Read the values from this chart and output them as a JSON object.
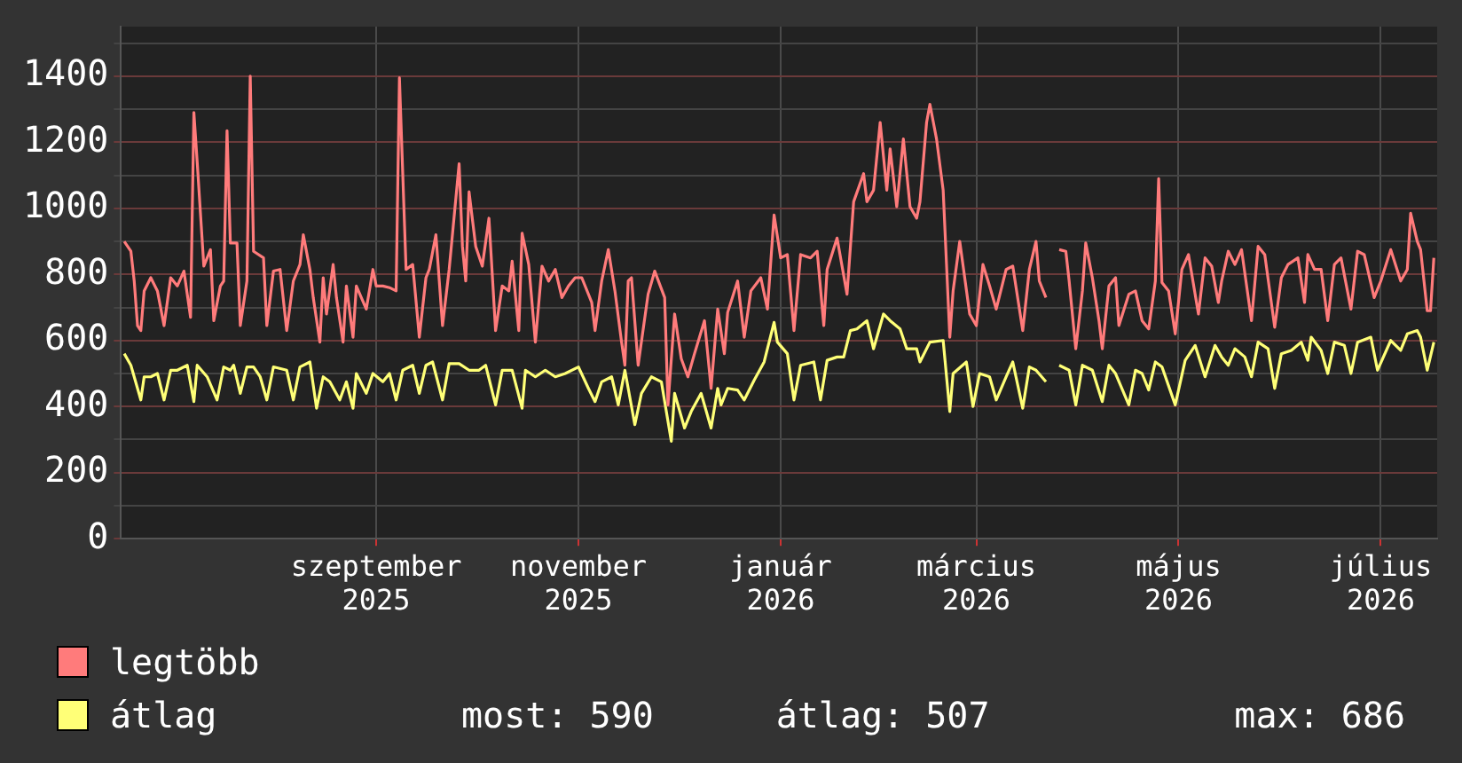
{
  "chart_data": {
    "type": "line",
    "xlim": [
      "2025-06-16",
      "2026-07-18"
    ],
    "xticks": [
      {
        "value": "2025-09-01",
        "label": "szeptember 2025"
      },
      {
        "value": "2025-11-01",
        "label": "november 2025"
      },
      {
        "value": "2026-01-01",
        "label": "január 2026"
      },
      {
        "value": "2026-03-01",
        "label": "március 2026"
      },
      {
        "value": "2026-05-01",
        "label": "május 2026"
      },
      {
        "value": "2026-07-01",
        "label": "július 2026"
      }
    ],
    "ylim": [
      0,
      1550
    ],
    "yticks": [
      0,
      {
        "value": 100,
        "label": null
      },
      200,
      {
        "value": 300,
        "label": null
      },
      400,
      {
        "value": 500,
        "label": null
      },
      600,
      {
        "value": 700,
        "label": null
      },
      800,
      {
        "value": 900,
        "label": null
      },
      1000,
      {
        "value": 1100,
        "label": null
      },
      1200,
      {
        "value": 1300,
        "label": null
      },
      1400,
      {
        "value": 1500,
        "label": null
      }
    ],
    "grid": true,
    "legend": "bottom",
    "annotations": [
      "most: 590",
      "átlag: 507",
      "max: 686"
    ],
    "series": [
      {
        "name": "legtöbb",
        "color": "#ff7b7b",
        "x": [
          "2025-06-17",
          "2025-06-19",
          "2025-06-20",
          "2025-06-21",
          "2025-06-22",
          "2025-06-23",
          "2025-06-25",
          "2025-06-27",
          "2025-06-29",
          "2025-07-01",
          "2025-07-03",
          "2025-07-05",
          "2025-07-07",
          "2025-07-08",
          "2025-07-09",
          "2025-07-11",
          "2025-07-13",
          "2025-07-14",
          "2025-07-16",
          "2025-07-17",
          "2025-07-18",
          "2025-07-19",
          "2025-07-21",
          "2025-07-22",
          "2025-07-24",
          "2025-07-25",
          "2025-07-26",
          "2025-07-29",
          "2025-07-30",
          "2025-08-01",
          "2025-08-03",
          "2025-08-05",
          "2025-08-07",
          "2025-08-09",
          "2025-08-10",
          "2025-08-12",
          "2025-08-13",
          "2025-08-15",
          "2025-08-16",
          "2025-08-17",
          "2025-08-19",
          "2025-08-20",
          "2025-08-22",
          "2025-08-23",
          "2025-08-25",
          "2025-08-26",
          "2025-08-29",
          "2025-08-31",
          "2025-09-01",
          "2025-09-03",
          "2025-09-05",
          "2025-09-07",
          "2025-09-08",
          "2025-09-10",
          "2025-09-12",
          "2025-09-14",
          "2025-09-16",
          "2025-09-17",
          "2025-09-19",
          "2025-09-21",
          "2025-09-23",
          "2025-09-26",
          "2025-09-27",
          "2025-09-28",
          "2025-09-29",
          "2025-10-01",
          "2025-10-03",
          "2025-10-05",
          "2025-10-07",
          "2025-10-09",
          "2025-10-11",
          "2025-10-12",
          "2025-10-14",
          "2025-10-15",
          "2025-10-17",
          "2025-10-19",
          "2025-10-21",
          "2025-10-23",
          "2025-10-25",
          "2025-10-27",
          "2025-10-29",
          "2025-10-31",
          "2025-11-02",
          "2025-11-05",
          "2025-11-06",
          "2025-11-08",
          "2025-11-10",
          "2025-11-12",
          "2025-11-14",
          "2025-11-15",
          "2025-11-16",
          "2025-11-17",
          "2025-11-19",
          "2025-11-22",
          "2025-11-24",
          "2025-11-27",
          "2025-11-28",
          "2025-11-30",
          "2025-12-02",
          "2025-12-04",
          "2025-12-06",
          "2025-12-09",
          "2025-12-11",
          "2025-12-13",
          "2025-12-15",
          "2025-12-16",
          "2025-12-19",
          "2025-12-21",
          "2025-12-23",
          "2025-12-26",
          "2025-12-28",
          "2025-12-30",
          "2026-01-01",
          "2026-01-03",
          "2026-01-05",
          "2026-01-07",
          "2026-01-10",
          "2026-01-12",
          "2026-01-14",
          "2026-01-15",
          "2026-01-18",
          "2026-01-21",
          "2026-01-23",
          "2026-01-26",
          "2026-01-27",
          "2026-01-29",
          "2026-01-31",
          "2026-02-02",
          "2026-02-03",
          "2026-02-05",
          "2026-02-07",
          "2026-02-09",
          "2026-02-11",
          "2026-02-12",
          "2026-02-14",
          "2026-02-15",
          "2026-02-17",
          "2026-02-19",
          "2026-02-21",
          "2026-02-22",
          "2026-02-24",
          "2026-02-27",
          "2026-03-01",
          "2026-03-03",
          "2026-03-05",
          "2026-03-07",
          "2026-03-10",
          "2026-03-12",
          "2026-03-15",
          "2026-03-17",
          "2026-03-19",
          "2026-03-20",
          "2026-03-22",
          "2026-03-23",
          "2026-03-26",
          "2026-03-28",
          "2026-03-29",
          "2026-03-31",
          "2026-04-02",
          "2026-04-03",
          "2026-04-05",
          "2026-04-07",
          "2026-04-08",
          "2026-04-10",
          "2026-04-12",
          "2026-04-13",
          "2026-04-16",
          "2026-04-18",
          "2026-04-20",
          "2026-04-22",
          "2026-04-24",
          "2026-04-25",
          "2026-04-26",
          "2026-04-28",
          "2026-04-30",
          "2026-05-02",
          "2026-05-04",
          "2026-05-07",
          "2026-05-09",
          "2026-05-11",
          "2026-05-13",
          "2026-05-14",
          "2026-05-16",
          "2026-05-18",
          "2026-05-20",
          "2026-05-23",
          "2026-05-25",
          "2026-05-27",
          "2026-05-30",
          "2026-06-01",
          "2026-06-03",
          "2026-06-06",
          "2026-06-08",
          "2026-06-09",
          "2026-06-11",
          "2026-06-13",
          "2026-06-15",
          "2026-06-17",
          "2026-06-19",
          "2026-06-22",
          "2026-06-24",
          "2026-06-26",
          "2026-06-29",
          "2026-07-01",
          "2026-07-04",
          "2026-07-07",
          "2026-07-09",
          "2026-07-10",
          "2026-07-12",
          "2026-07-13",
          "2026-07-15",
          "2026-07-16",
          "2026-07-17"
        ],
        "values": [
          900,
          870,
          780,
          645,
          630,
          750,
          790,
          750,
          645,
          790,
          765,
          810,
          670,
          1290,
          1140,
          825,
          875,
          660,
          765,
          780,
          1235,
          895,
          895,
          645,
          780,
          1400,
          870,
          850,
          645,
          810,
          815,
          630,
          780,
          830,
          920,
          815,
          730,
          595,
          790,
          680,
          830,
          730,
          595,
          765,
          610,
          765,
          695,
          815,
          765,
          765,
          760,
          750,
          1395,
          815,
          830,
          610,
          790,
          815,
          920,
          645,
          815,
          1135,
          885,
          780,
          1050,
          885,
          825,
          970,
          630,
          765,
          750,
          840,
          630,
          925,
          830,
          595,
          825,
          780,
          815,
          730,
          765,
          790,
          790,
          715,
          630,
          780,
          875,
          750,
          595,
          525,
          780,
          790,
          525,
          740,
          810,
          730,
          405,
          680,
          545,
          490,
          560,
          660,
          455,
          695,
          560,
          685,
          780,
          610,
          750,
          790,
          695,
          980,
          850,
          860,
          630,
          860,
          850,
          870,
          645,
          815,
          910,
          740,
          1020,
          1105,
          1020,
          1055,
          1260,
          1055,
          1180,
          1005,
          1210,
          1005,
          970,
          1020,
          1260,
          1315,
          1210,
          1055,
          610,
          750,
          900,
          680,
          645,
          830,
          765,
          695,
          815,
          825,
          630,
          815,
          900,
          780,
          730,
          null,
          875,
          870,
          780,
          575,
          750,
          895,
          790,
          660,
          575,
          765,
          790,
          645,
          740,
          750,
          660,
          635,
          780,
          1090,
          775,
          750,
          620,
          815,
          860,
          680,
          850,
          825,
          715,
          780,
          870,
          830,
          875,
          660,
          885,
          860,
          640,
          790,
          830,
          850,
          715,
          860,
          815,
          815,
          660,
          830,
          850,
          695,
          870,
          860,
          730,
          780,
          875,
          780,
          815,
          985,
          900,
          875,
          690,
          690,
          850
        ]
      },
      {
        "name": "átlag",
        "color": "#ffff77",
        "x": [
          "2025-06-17",
          "2025-06-19",
          "2025-06-22",
          "2025-06-23",
          "2025-06-25",
          "2025-06-27",
          "2025-06-29",
          "2025-07-01",
          "2025-07-03",
          "2025-07-06",
          "2025-07-08",
          "2025-07-09",
          "2025-07-12",
          "2025-07-15",
          "2025-07-17",
          "2025-07-19",
          "2025-07-20",
          "2025-07-22",
          "2025-07-24",
          "2025-07-26",
          "2025-07-28",
          "2025-07-30",
          "2025-08-01",
          "2025-08-05",
          "2025-08-07",
          "2025-08-09",
          "2025-08-12",
          "2025-08-14",
          "2025-08-16",
          "2025-08-18",
          "2025-08-21",
          "2025-08-23",
          "2025-08-25",
          "2025-08-26",
          "2025-08-29",
          "2025-08-31",
          "2025-09-03",
          "2025-09-05",
          "2025-09-07",
          "2025-09-09",
          "2025-09-12",
          "2025-09-14",
          "2025-09-16",
          "2025-09-18",
          "2025-09-21",
          "2025-09-23",
          "2025-09-26",
          "2025-09-29",
          "2025-10-02",
          "2025-10-04",
          "2025-10-07",
          "2025-10-09",
          "2025-10-12",
          "2025-10-15",
          "2025-10-16",
          "2025-10-19",
          "2025-10-22",
          "2025-10-25",
          "2025-10-28",
          "2025-11-01",
          "2025-11-04",
          "2025-11-06",
          "2025-11-08",
          "2025-11-11",
          "2025-11-13",
          "2025-11-15",
          "2025-11-18",
          "2025-11-20",
          "2025-11-23",
          "2025-11-26",
          "2025-11-29",
          "2025-11-30",
          "2025-12-03",
          "2025-12-05",
          "2025-12-08",
          "2025-12-11",
          "2025-12-13",
          "2025-12-14",
          "2025-12-16",
          "2025-12-19",
          "2025-12-21",
          "2025-12-24",
          "2025-12-27",
          "2025-12-30",
          "2025-12-31",
          "2026-01-03",
          "2026-01-05",
          "2026-01-07",
          "2026-01-11",
          "2026-01-13",
          "2026-01-15",
          "2026-01-18",
          "2026-01-20",
          "2026-01-22",
          "2026-01-24",
          "2026-01-27",
          "2026-01-29",
          "2026-02-01",
          "2026-02-03",
          "2026-02-06",
          "2026-02-08",
          "2026-02-11",
          "2026-02-12",
          "2026-02-15",
          "2026-02-19",
          "2026-02-21",
          "2026-02-22",
          "2026-02-26",
          "2026-02-28",
          "2026-03-02",
          "2026-03-05",
          "2026-03-07",
          "2026-03-10",
          "2026-03-12",
          "2026-03-15",
          "2026-03-17",
          "2026-03-19",
          "2026-03-22",
          "2026-03-23",
          "2026-03-26",
          "2026-03-29",
          "2026-03-31",
          "2026-04-02",
          "2026-04-05",
          "2026-04-08",
          "2026-04-10",
          "2026-04-12",
          "2026-04-16",
          "2026-04-18",
          "2026-04-20",
          "2026-04-22",
          "2026-04-24",
          "2026-04-26",
          "2026-04-30",
          "2026-05-03",
          "2026-05-06",
          "2026-05-09",
          "2026-05-12",
          "2026-05-14",
          "2026-05-16",
          "2026-05-18",
          "2026-05-21",
          "2026-05-23",
          "2026-05-25",
          "2026-05-28",
          "2026-05-30",
          "2026-06-01",
          "2026-06-04",
          "2026-06-07",
          "2026-06-09",
          "2026-06-10",
          "2026-06-13",
          "2026-06-15",
          "2026-06-17",
          "2026-06-20",
          "2026-06-22",
          "2026-06-24",
          "2026-06-28",
          "2026-06-30",
          "2026-07-04",
          "2026-07-07",
          "2026-07-09",
          "2026-07-12",
          "2026-07-13",
          "2026-07-15",
          "2026-07-17"
        ],
        "values": [
          560,
          525,
          420,
          490,
          490,
          500,
          420,
          510,
          510,
          525,
          415,
          525,
          490,
          420,
          520,
          510,
          525,
          440,
          520,
          520,
          490,
          420,
          520,
          510,
          420,
          520,
          535,
          395,
          490,
          475,
          420,
          475,
          395,
          500,
          440,
          500,
          475,
          500,
          420,
          510,
          525,
          440,
          525,
          535,
          420,
          530,
          530,
          510,
          510,
          525,
          405,
          510,
          510,
          395,
          510,
          490,
          510,
          490,
          500,
          520,
          455,
          415,
          475,
          490,
          405,
          510,
          345,
          440,
          490,
          475,
          295,
          440,
          335,
          385,
          440,
          335,
          455,
          405,
          455,
          450,
          420,
          480,
          535,
          655,
          595,
          560,
          420,
          525,
          535,
          420,
          540,
          550,
          550,
          630,
          635,
          660,
          575,
          680,
          660,
          635,
          575,
          575,
          535,
          595,
          600,
          385,
          500,
          535,
          400,
          500,
          490,
          420,
          490,
          535,
          395,
          520,
          510,
          475,
          null,
          525,
          510,
          405,
          525,
          510,
          415,
          525,
          500,
          405,
          510,
          500,
          450,
          535,
          520,
          405,
          540,
          585,
          490,
          585,
          550,
          525,
          575,
          550,
          490,
          595,
          575,
          455,
          560,
          570,
          595,
          540,
          610,
          570,
          500,
          595,
          585,
          500,
          595,
          610,
          510,
          600,
          570,
          620,
          630,
          610,
          510,
          595
        ]
      }
    ]
  }
}
